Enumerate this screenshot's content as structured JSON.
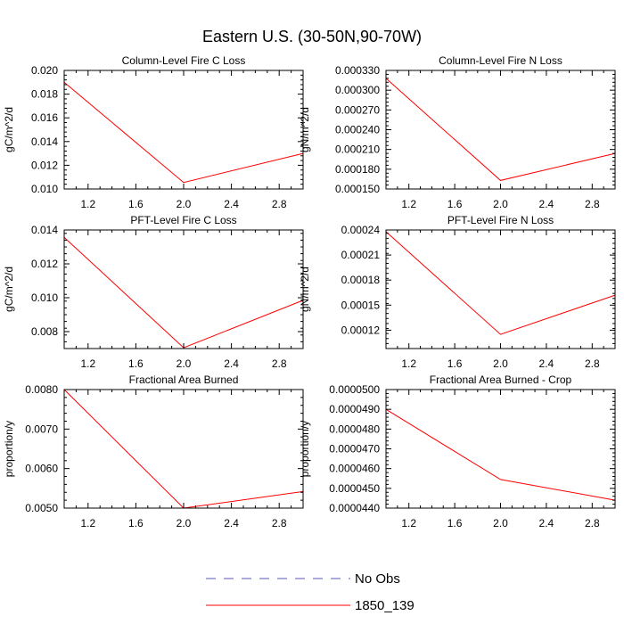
{
  "title": "Eastern U.S. (30-50N,90-70W)",
  "colors": {
    "series": "#ff0000",
    "obs": "#5555bb",
    "axis": "#000000"
  },
  "legend": [
    {
      "label": "No Obs",
      "style": "dashed",
      "color": "#5555bb"
    },
    {
      "label": "1850_139",
      "style": "solid",
      "color": "#ff0000"
    }
  ],
  "chart_data": [
    {
      "type": "line",
      "title": "Column-Level Fire C Loss",
      "ylabel": "gC/m^2/d",
      "xlim": [
        1.0,
        3.0
      ],
      "ylim": [
        0.01,
        0.02
      ],
      "xticks": [
        1.2,
        1.6,
        2.0,
        2.4,
        2.8
      ],
      "xtick_labels": [
        "1.2",
        "1.6",
        "2.0",
        "2.4",
        "2.8"
      ],
      "yticks": [
        0.01,
        0.012,
        0.014,
        0.016,
        0.018,
        0.02
      ],
      "ytick_labels": [
        "0.010",
        "0.012",
        "0.014",
        "0.016",
        "0.018",
        "0.020"
      ],
      "series": [
        {
          "name": "1850_139",
          "x": [
            1.0,
            2.0,
            3.0
          ],
          "y": [
            0.019,
            0.01055,
            0.013
          ]
        }
      ]
    },
    {
      "type": "line",
      "title": "Column-Level Fire N Loss",
      "ylabel": "gN/m^2/d",
      "xlim": [
        1.0,
        3.0
      ],
      "ylim": [
        0.00015,
        0.00033
      ],
      "xticks": [
        1.2,
        1.6,
        2.0,
        2.4,
        2.8
      ],
      "xtick_labels": [
        "1.2",
        "1.6",
        "2.0",
        "2.4",
        "2.8"
      ],
      "yticks": [
        0.00015,
        0.00018,
        0.00021,
        0.00024,
        0.00027,
        0.0003,
        0.00033
      ],
      "ytick_labels": [
        "0.000150",
        "0.000180",
        "0.000210",
        "0.000240",
        "0.000270",
        "0.000300",
        "0.000330"
      ],
      "series": [
        {
          "name": "1850_139",
          "x": [
            1.0,
            2.0,
            3.0
          ],
          "y": [
            0.000318,
            0.000163,
            0.000204
          ]
        }
      ]
    },
    {
      "type": "line",
      "title": "PFT-Level Fire C Loss",
      "ylabel": "gC/m^2/d",
      "xlim": [
        1.0,
        3.0
      ],
      "ylim": [
        0.007,
        0.014
      ],
      "xticks": [
        1.2,
        1.6,
        2.0,
        2.4,
        2.8
      ],
      "xtick_labels": [
        "1.2",
        "1.6",
        "2.0",
        "2.4",
        "2.8"
      ],
      "yticks": [
        0.008,
        0.01,
        0.012,
        0.014
      ],
      "ytick_labels": [
        "0.008",
        "0.010",
        "0.012",
        "0.014"
      ],
      "series": [
        {
          "name": "1850_139",
          "x": [
            1.0,
            2.0,
            3.0
          ],
          "y": [
            0.01357,
            0.00705,
            0.00985
          ]
        }
      ]
    },
    {
      "type": "line",
      "title": "PFT-Level Fire N Loss",
      "ylabel": "gN/m^2/d",
      "xlim": [
        1.0,
        3.0
      ],
      "ylim": [
        9.8e-05,
        0.00024
      ],
      "xticks": [
        1.2,
        1.6,
        2.0,
        2.4,
        2.8
      ],
      "xtick_labels": [
        "1.2",
        "1.6",
        "2.0",
        "2.4",
        "2.8"
      ],
      "yticks": [
        0.00012,
        0.00015,
        0.00018,
        0.00021,
        0.00024
      ],
      "ytick_labels": [
        "0.00012",
        "0.00015",
        "0.00018",
        "0.00021",
        "0.00024"
      ],
      "series": [
        {
          "name": "1850_139",
          "x": [
            1.0,
            2.0,
            3.0
          ],
          "y": [
            0.000238,
            0.000115,
            0.000162
          ]
        }
      ]
    },
    {
      "type": "line",
      "title": "Fractional Area Burned",
      "ylabel": "proportion/y",
      "xlim": [
        1.0,
        3.0
      ],
      "ylim": [
        0.005,
        0.008
      ],
      "xticks": [
        1.2,
        1.6,
        2.0,
        2.4,
        2.8
      ],
      "xtick_labels": [
        "1.2",
        "1.6",
        "2.0",
        "2.4",
        "2.8"
      ],
      "yticks": [
        0.005,
        0.006,
        0.007,
        0.008
      ],
      "ytick_labels": [
        "0.0050",
        "0.0060",
        "0.0070",
        "0.0080"
      ],
      "series": [
        {
          "name": "1850_139",
          "x": [
            1.0,
            2.0,
            3.0
          ],
          "y": [
            0.008,
            0.005,
            0.00542
          ]
        }
      ]
    },
    {
      "type": "line",
      "title": "Fractional Area Burned - Crop",
      "ylabel": "proportion/y",
      "xlim": [
        1.0,
        3.0
      ],
      "ylim": [
        4.4e-05,
        5e-05
      ],
      "xticks": [
        1.2,
        1.6,
        2.0,
        2.4,
        2.8
      ],
      "xtick_labels": [
        "1.2",
        "1.6",
        "2.0",
        "2.4",
        "2.8"
      ],
      "yticks": [
        4.4e-05,
        4.5e-05,
        4.6e-05,
        4.7e-05,
        4.8e-05,
        4.9e-05,
        5e-05
      ],
      "ytick_labels": [
        "0.0000440",
        "0.0000450",
        "0.0000460",
        "0.0000470",
        "0.0000480",
        "0.0000490",
        "0.0000500"
      ],
      "series": [
        {
          "name": "1850_139",
          "x": [
            1.0,
            2.0,
            3.0
          ],
          "y": [
            4.9e-05,
            4.545e-05,
            4.44e-05
          ]
        }
      ]
    }
  ]
}
